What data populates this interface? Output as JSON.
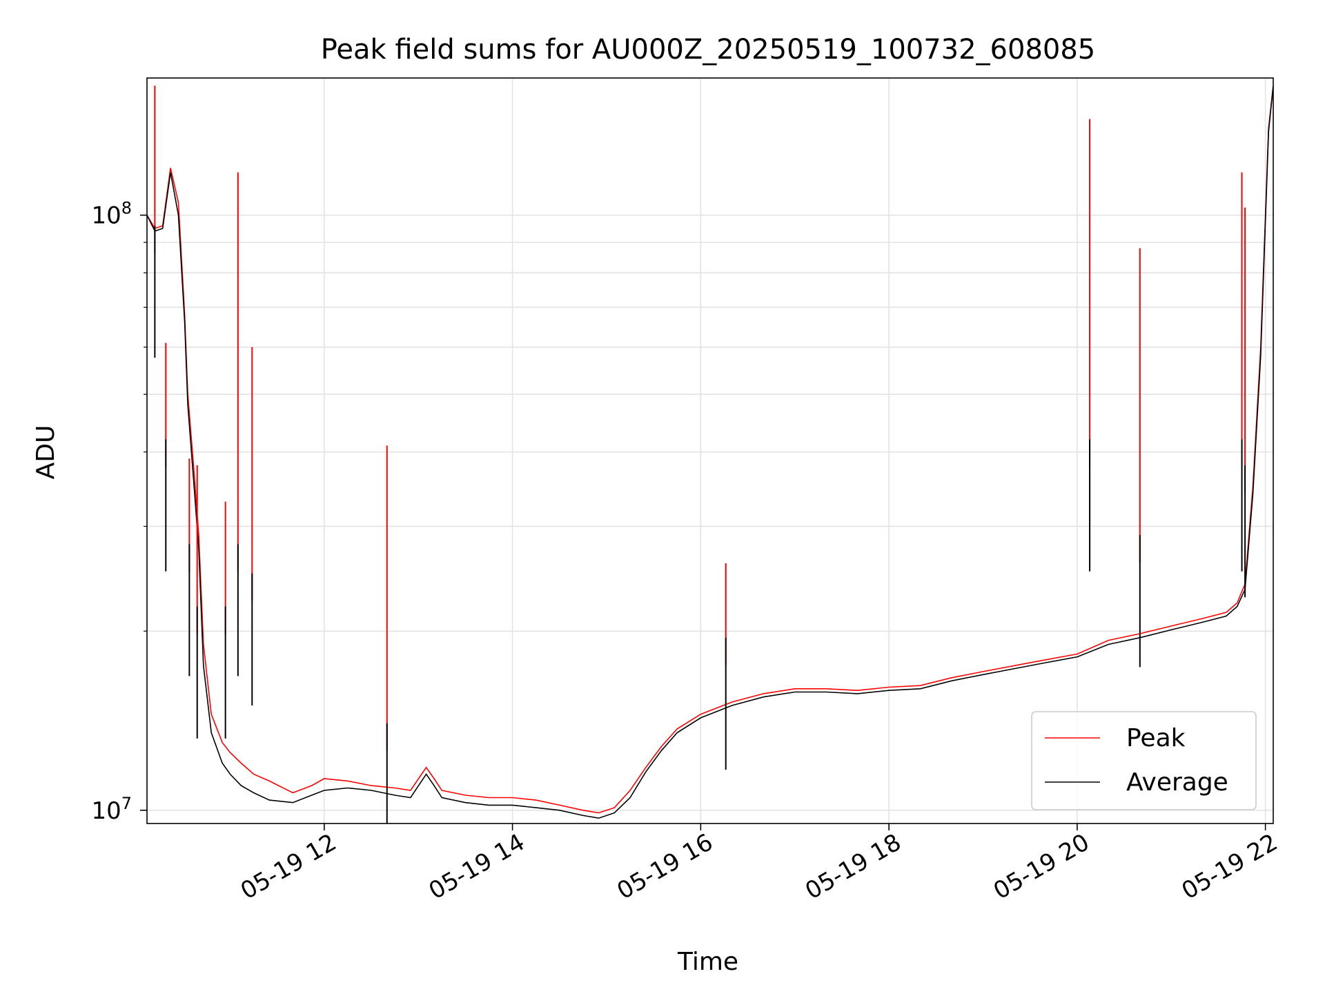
{
  "chart_data": {
    "type": "line",
    "title": "Peak field sums for AU000Z_20250519_100732_608085",
    "xlabel": "Time",
    "ylabel": "ADU",
    "yscale": "log",
    "xlim": [
      "2025-05-19 10:07",
      "2025-05-19 22:05"
    ],
    "ylim": [
      9500000,
      170000000
    ],
    "grid": true,
    "legend_position": "lower-right",
    "x_ticks": [
      {
        "value": "2025-05-19 12:00",
        "label": "05-19 12"
      },
      {
        "value": "2025-05-19 14:00",
        "label": "05-19 14"
      },
      {
        "value": "2025-05-19 16:00",
        "label": "05-19 16"
      },
      {
        "value": "2025-05-19 18:00",
        "label": "05-19 18"
      },
      {
        "value": "2025-05-19 20:00",
        "label": "05-19 20"
      },
      {
        "value": "2025-05-19 22:00",
        "label": "05-19 22"
      }
    ],
    "y_ticks": [
      {
        "value": 10000000,
        "base": "10",
        "exp": "7"
      },
      {
        "value": 100000000,
        "base": "10",
        "exp": "8"
      }
    ],
    "series": [
      {
        "name": "Peak",
        "color": "#ff0000",
        "x": [
          "2025-05-19 10:07",
          "2025-05-19 10:12",
          "2025-05-19 10:17",
          "2025-05-19 10:22",
          "2025-05-19 10:27",
          "2025-05-19 10:31",
          "2025-05-19 10:33",
          "2025-05-19 10:37",
          "2025-05-19 10:40",
          "2025-05-19 10:43",
          "2025-05-19 10:48",
          "2025-05-19 10:55",
          "2025-05-19 11:00",
          "2025-05-19 11:07",
          "2025-05-19 11:15",
          "2025-05-19 11:25",
          "2025-05-19 11:40",
          "2025-05-19 11:52",
          "2025-05-19 12:00",
          "2025-05-19 12:15",
          "2025-05-19 12:30",
          "2025-05-19 12:45",
          "2025-05-19 12:55",
          "2025-05-19 13:05",
          "2025-05-19 13:10",
          "2025-05-19 13:15",
          "2025-05-19 13:30",
          "2025-05-19 13:45",
          "2025-05-19 14:00",
          "2025-05-19 14:15",
          "2025-05-19 14:30",
          "2025-05-19 14:45",
          "2025-05-19 14:55",
          "2025-05-19 15:05",
          "2025-05-19 15:15",
          "2025-05-19 15:25",
          "2025-05-19 15:35",
          "2025-05-19 15:45",
          "2025-05-19 16:00",
          "2025-05-19 16:20",
          "2025-05-19 16:40",
          "2025-05-19 17:00",
          "2025-05-19 17:20",
          "2025-05-19 17:40",
          "2025-05-19 18:00",
          "2025-05-19 18:20",
          "2025-05-19 18:40",
          "2025-05-19 19:00",
          "2025-05-19 19:20",
          "2025-05-19 19:40",
          "2025-05-19 20:00",
          "2025-05-19 20:20",
          "2025-05-19 20:40",
          "2025-05-19 21:00",
          "2025-05-19 21:20",
          "2025-05-19 21:35",
          "2025-05-19 21:42",
          "2025-05-19 21:47",
          "2025-05-19 21:52",
          "2025-05-19 21:57",
          "2025-05-19 22:02",
          "2025-05-19 22:05"
        ],
        "y": [
          100000000,
          95000000,
          96000000,
          120000000,
          105000000,
          68000000,
          50000000,
          37000000,
          29000000,
          19000000,
          14500000,
          13000000,
          12500000,
          12000000,
          11500000,
          11200000,
          10700000,
          11000000,
          11300000,
          11200000,
          11000000,
          10900000,
          10800000,
          11800000,
          11300000,
          10800000,
          10600000,
          10500000,
          10500000,
          10400000,
          10200000,
          10000000,
          9900000,
          10100000,
          10800000,
          11800000,
          12800000,
          13700000,
          14500000,
          15200000,
          15700000,
          16000000,
          16000000,
          15900000,
          16100000,
          16200000,
          16700000,
          17100000,
          17500000,
          17900000,
          18300000,
          19300000,
          19800000,
          20400000,
          21000000,
          21500000,
          22300000,
          24000000,
          35000000,
          60000000,
          140000000,
          165000000
        ]
      },
      {
        "name": "Average",
        "color": "#000000",
        "x": [
          "2025-05-19 10:07",
          "2025-05-19 10:12",
          "2025-05-19 10:17",
          "2025-05-19 10:22",
          "2025-05-19 10:27",
          "2025-05-19 10:31",
          "2025-05-19 10:33",
          "2025-05-19 10:37",
          "2025-05-19 10:40",
          "2025-05-19 10:43",
          "2025-05-19 10:48",
          "2025-05-19 10:55",
          "2025-05-19 11:00",
          "2025-05-19 11:07",
          "2025-05-19 11:15",
          "2025-05-19 11:25",
          "2025-05-19 11:40",
          "2025-05-19 11:52",
          "2025-05-19 12:00",
          "2025-05-19 12:15",
          "2025-05-19 12:30",
          "2025-05-19 12:45",
          "2025-05-19 12:55",
          "2025-05-19 13:05",
          "2025-05-19 13:10",
          "2025-05-19 13:15",
          "2025-05-19 13:30",
          "2025-05-19 13:45",
          "2025-05-19 14:00",
          "2025-05-19 14:15",
          "2025-05-19 14:30",
          "2025-05-19 14:45",
          "2025-05-19 14:55",
          "2025-05-19 15:05",
          "2025-05-19 15:15",
          "2025-05-19 15:25",
          "2025-05-19 15:35",
          "2025-05-19 15:45",
          "2025-05-19 16:00",
          "2025-05-19 16:20",
          "2025-05-19 16:40",
          "2025-05-19 17:00",
          "2025-05-19 17:20",
          "2025-05-19 17:40",
          "2025-05-19 18:00",
          "2025-05-19 18:20",
          "2025-05-19 18:40",
          "2025-05-19 19:00",
          "2025-05-19 19:20",
          "2025-05-19 19:40",
          "2025-05-19 20:00",
          "2025-05-19 20:20",
          "2025-05-19 20:40",
          "2025-05-19 21:00",
          "2025-05-19 21:20",
          "2025-05-19 21:35",
          "2025-05-19 21:42",
          "2025-05-19 21:47",
          "2025-05-19 21:52",
          "2025-05-19 21:57",
          "2025-05-19 22:02",
          "2025-05-19 22:05"
        ],
        "y": [
          100000000,
          94000000,
          95000000,
          118000000,
          100000000,
          66000000,
          48000000,
          35000000,
          27500000,
          17500000,
          13500000,
          12000000,
          11500000,
          11000000,
          10700000,
          10400000,
          10300000,
          10600000,
          10800000,
          10900000,
          10800000,
          10600000,
          10500000,
          11500000,
          11000000,
          10500000,
          10300000,
          10200000,
          10200000,
          10100000,
          10000000,
          9800000,
          9700000,
          9900000,
          10500000,
          11600000,
          12600000,
          13500000,
          14300000,
          15000000,
          15500000,
          15800000,
          15800000,
          15700000,
          15900000,
          16000000,
          16500000,
          16900000,
          17300000,
          17700000,
          18100000,
          19000000,
          19500000,
          20100000,
          20700000,
          21200000,
          22000000,
          23500000,
          34000000,
          58000000,
          138000000,
          165000000
        ]
      }
    ],
    "peak_spikes": [
      {
        "x": "2025-05-19 10:12",
        "peak": 165000000,
        "average": 96000000
      },
      {
        "x": "2025-05-19 10:19",
        "peak": 61000000,
        "average": 42000000
      },
      {
        "x": "2025-05-19 10:34",
        "peak": 39000000,
        "average": 28000000
      },
      {
        "x": "2025-05-19 10:39",
        "peak": 38000000,
        "average": 22000000
      },
      {
        "x": "2025-05-19 10:57",
        "peak": 33000000,
        "average": 22000000
      },
      {
        "x": "2025-05-19 11:05",
        "peak": 118000000,
        "average": 28000000
      },
      {
        "x": "2025-05-19 11:14",
        "peak": 60000000,
        "average": 25000000
      },
      {
        "x": "2025-05-19 12:40",
        "peak": 41000000,
        "average": 14000000
      },
      {
        "x": "2025-05-19 16:16",
        "peak": 26000000,
        "average": 19500000
      },
      {
        "x": "2025-05-19 20:08",
        "peak": 145000000,
        "average": 42000000
      },
      {
        "x": "2025-05-19 20:40",
        "peak": 88000000,
        "average": 29000000
      },
      {
        "x": "2025-05-19 21:45",
        "peak": 118000000,
        "average": 42000000
      },
      {
        "x": "2025-05-19 21:47",
        "peak": 103000000,
        "average": 38000000
      }
    ]
  }
}
